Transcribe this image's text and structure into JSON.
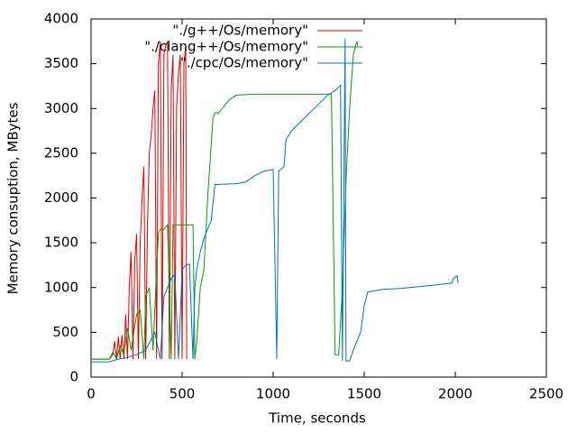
{
  "chart_data": {
    "type": "line",
    "xlabel": "Time, seconds",
    "ylabel": "Memory consuption, MBytes",
    "xlim": [
      0,
      2500
    ],
    "xticks": [
      0,
      500,
      1000,
      1500,
      2000,
      2500
    ],
    "ylim": [
      0,
      4000
    ],
    "yticks": [
      0,
      500,
      1000,
      1500,
      2000,
      2500,
      3000,
      3500,
      4000
    ],
    "grid": false,
    "legend": "top-right",
    "series": [
      {
        "name": "\"./g++/Os/memory\"",
        "color": "#e00000",
        "x": [
          0,
          100,
          120,
          130,
          140,
          150,
          160,
          170,
          180,
          190,
          200,
          210,
          220,
          230,
          240,
          250,
          260,
          270,
          280,
          290,
          300,
          310,
          320,
          330,
          340,
          350,
          360,
          370,
          380,
          390,
          400,
          410,
          420,
          430,
          440,
          450,
          460,
          470,
          480,
          490,
          500,
          510,
          520,
          525
        ],
        "values": [
          200,
          200,
          250,
          400,
          200,
          450,
          200,
          470,
          200,
          700,
          200,
          1000,
          1400,
          200,
          1300,
          1600,
          200,
          1500,
          2000,
          2350,
          200,
          1700,
          2500,
          2700,
          3000,
          3200,
          200,
          3500,
          3750,
          200,
          3600,
          3700,
          3750,
          200,
          3200,
          3600,
          200,
          3000,
          3400,
          3600,
          200,
          3500,
          3700,
          200
        ]
      },
      {
        "name": "\"./clang++/Os/memory\"",
        "color": "#00a000",
        "x": [
          0,
          100,
          120,
          140,
          160,
          180,
          200,
          220,
          250,
          270,
          290,
          300,
          320,
          340,
          360,
          370,
          380,
          400,
          420,
          440,
          450,
          500,
          560,
          570,
          580,
          600,
          620,
          640,
          660,
          670,
          680,
          700,
          720,
          740,
          760,
          800,
          900,
          1200,
          1320,
          1340,
          1360,
          1380,
          1400,
          1420,
          1440,
          1460,
          1465
        ],
        "values": [
          200,
          200,
          280,
          200,
          350,
          250,
          550,
          300,
          700,
          750,
          200,
          900,
          1000,
          300,
          1200,
          1600,
          1650,
          1650,
          1700,
          200,
          1700,
          1700,
          1700,
          200,
          400,
          1000,
          1200,
          2000,
          2600,
          2900,
          2950,
          2950,
          3000,
          3050,
          3100,
          3150,
          3160,
          3160,
          3160,
          250,
          250,
          1000,
          2200,
          3000,
          3600,
          3750,
          3700
        ]
      },
      {
        "name": "\"./cpc/Os/memory\"",
        "color": "#0070d0",
        "x": [
          0,
          100,
          150,
          200,
          250,
          300,
          350,
          380,
          400,
          420,
          440,
          460,
          480,
          500,
          520,
          540,
          560,
          570,
          580,
          600,
          620,
          640,
          660,
          680,
          800,
          850,
          900,
          950,
          1000,
          1020,
          1030,
          1060,
          1070,
          1100,
          1150,
          1200,
          1250,
          1300,
          1340,
          1370,
          1380,
          1395,
          1400,
          1420,
          1440,
          1460,
          1480,
          1500,
          1520,
          1600,
          1700,
          1800,
          1900,
          1980,
          1990,
          2010,
          2015
        ],
        "values": [
          170,
          170,
          200,
          220,
          250,
          300,
          500,
          200,
          900,
          1000,
          1100,
          1150,
          200,
          1200,
          1250,
          1260,
          200,
          1000,
          1200,
          1400,
          1550,
          1650,
          1750,
          2150,
          2160,
          2180,
          2250,
          2300,
          2320,
          200,
          2300,
          2350,
          2650,
          2750,
          2850,
          2950,
          3050,
          3150,
          3200,
          3260,
          180,
          3780,
          180,
          180,
          300,
          400,
          500,
          800,
          950,
          980,
          990,
          1010,
          1030,
          1050,
          1100,
          1130,
          1050
        ]
      }
    ]
  }
}
